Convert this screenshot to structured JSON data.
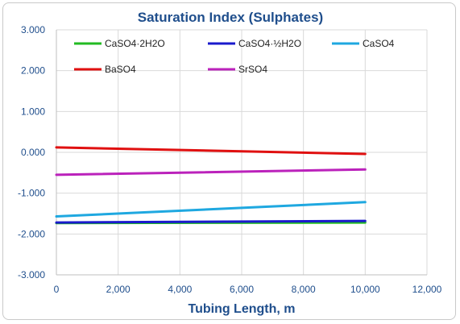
{
  "chart_data": {
    "type": "line",
    "title": "Saturation Index (Sulphates)",
    "xlabel": "Tubing Length, m",
    "ylabel": "",
    "xlim": [
      0,
      12000
    ],
    "ylim": [
      -3,
      3
    ],
    "x_ticks": [
      "0",
      "2,000",
      "4,000",
      "6,000",
      "8,000",
      "10,000",
      "12,000"
    ],
    "y_ticks": [
      "3.000",
      "2.000",
      "1.000",
      "0.000",
      "-1.000",
      "-2.000",
      "-3.000"
    ],
    "x_tick_values": [
      0,
      2000,
      4000,
      6000,
      8000,
      10000,
      12000
    ],
    "y_tick_values": [
      3,
      2,
      1,
      0,
      -1,
      -2,
      -3
    ],
    "grid": true,
    "legend_position": "top",
    "series": [
      {
        "name": "CaSO4·2H2O",
        "color": "#22bb22",
        "x": [
          0,
          10000
        ],
        "y": [
          -1.73,
          -1.72
        ]
      },
      {
        "name": "CaSO4·½H2O",
        "color": "#1a1acc",
        "x": [
          0,
          10000
        ],
        "y": [
          -1.72,
          -1.68
        ]
      },
      {
        "name": "CaSO4",
        "color": "#1fa8e0",
        "x": [
          0,
          10000
        ],
        "y": [
          -1.57,
          -1.22
        ]
      },
      {
        "name": "BaSO4",
        "color": "#e01010",
        "x": [
          0,
          10000
        ],
        "y": [
          0.12,
          -0.04
        ]
      },
      {
        "name": "SrSO4",
        "color": "#bb22bb",
        "x": [
          0,
          10000
        ],
        "y": [
          -0.55,
          -0.42
        ]
      }
    ],
    "colors": {
      "title": "#1f4e8c",
      "axis_text": "#1f4e8c",
      "grid": "#d9d9d9"
    }
  }
}
